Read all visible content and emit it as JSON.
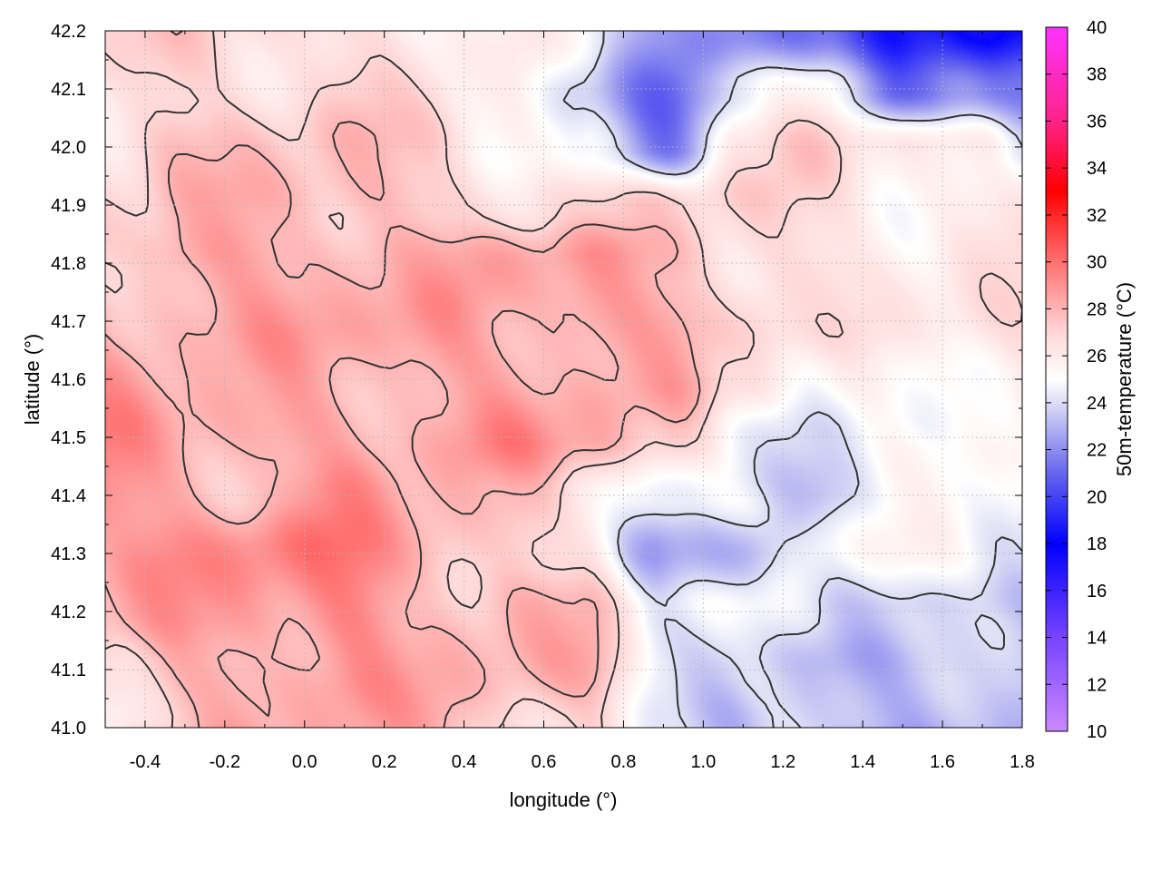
{
  "chart_data": {
    "type": "heatmap",
    "title": "",
    "xlabel": "longitude (°)",
    "ylabel": "latitude (°)",
    "colorbar_label": "50m-temperature (°C)",
    "xlim": [
      -0.5,
      1.8
    ],
    "ylim": [
      41.0,
      42.2
    ],
    "x_ticks": [
      "-0.4",
      "-0.2",
      "0.0",
      "0.2",
      "0.4",
      "0.6",
      "0.8",
      "1.0",
      "1.2",
      "1.4",
      "1.6",
      "1.8"
    ],
    "x_tick_values": [
      -0.4,
      -0.2,
      0.0,
      0.2,
      0.4,
      0.6,
      0.8,
      1.0,
      1.2,
      1.4,
      1.6,
      1.8
    ],
    "y_ticks": [
      "41.0",
      "41.1",
      "41.2",
      "41.3",
      "41.4",
      "41.5",
      "41.6",
      "41.7",
      "41.8",
      "41.9",
      "42.0",
      "42.1",
      "42.2"
    ],
    "y_tick_values": [
      41.0,
      41.1,
      41.2,
      41.3,
      41.4,
      41.5,
      41.6,
      41.7,
      41.8,
      41.9,
      42.0,
      42.1,
      42.2
    ],
    "colorbar_range": [
      10,
      40
    ],
    "colorbar_ticks": [
      "10",
      "12",
      "14",
      "16",
      "18",
      "20",
      "22",
      "24",
      "26",
      "28",
      "30",
      "32",
      "34",
      "36",
      "38",
      "40"
    ],
    "colorbar_tick_values": [
      10,
      12,
      14,
      16,
      18,
      20,
      22,
      24,
      26,
      28,
      30,
      32,
      34,
      36,
      38,
      40
    ],
    "colormap_stops": [
      {
        "value": 10,
        "color": "#cc88ff"
      },
      {
        "value": 14,
        "color": "#7744ff"
      },
      {
        "value": 18,
        "color": "#0000ff"
      },
      {
        "value": 21,
        "color": "#6666ee"
      },
      {
        "value": 24,
        "color": "#ddddf5"
      },
      {
        "value": 25,
        "color": "#ffffff"
      },
      {
        "value": 27,
        "color": "#ffd6d6"
      },
      {
        "value": 30,
        "color": "#ff7070"
      },
      {
        "value": 33,
        "color": "#ff0000"
      },
      {
        "value": 36,
        "color": "#ff2288"
      },
      {
        "value": 40,
        "color": "#ff33ff"
      }
    ],
    "grid": true,
    "contours": true,
    "temperature_field": {
      "lon": [
        -0.5,
        -0.3,
        -0.1,
        0.1,
        0.3,
        0.5,
        0.7,
        0.9,
        1.1,
        1.3,
        1.5,
        1.7,
        1.8
      ],
      "lat": [
        41.0,
        41.1,
        41.2,
        41.3,
        41.4,
        41.5,
        41.6,
        41.7,
        41.8,
        41.9,
        42.0,
        42.1,
        42.2
      ],
      "values": [
        [
          26.5,
          27.5,
          28.0,
          28.5,
          28.0,
          27.5,
          27.0,
          24.5,
          23.0,
          23.0,
          23.0,
          23.0,
          23.0
        ],
        [
          27.0,
          28.0,
          28.5,
          29.0,
          28.0,
          28.0,
          28.0,
          25.0,
          24.0,
          23.0,
          23.0,
          23.0,
          23.0
        ],
        [
          28.0,
          28.5,
          29.0,
          29.5,
          28.0,
          28.0,
          27.5,
          24.5,
          24.5,
          24.5,
          24.0,
          23.5,
          23.5
        ],
        [
          28.5,
          29.0,
          29.5,
          29.5,
          28.5,
          27.5,
          26.5,
          22.5,
          22.0,
          25.0,
          25.5,
          25.0,
          25.0
        ],
        [
          29.0,
          28.5,
          28.0,
          29.0,
          28.0,
          27.5,
          26.5,
          25.0,
          24.5,
          23.5,
          24.5,
          25.0,
          25.0
        ],
        [
          29.0,
          28.5,
          28.5,
          28.5,
          28.5,
          29.0,
          28.5,
          27.0,
          25.0,
          24.5,
          25.0,
          25.5,
          25.5
        ],
        [
          28.5,
          28.0,
          28.0,
          28.0,
          28.5,
          28.5,
          28.5,
          28.0,
          26.5,
          25.0,
          25.5,
          26.0,
          26.0
        ],
        [
          28.0,
          28.5,
          28.5,
          28.5,
          28.5,
          28.0,
          29.0,
          28.5,
          27.5,
          26.0,
          26.0,
          26.5,
          26.5
        ],
        [
          27.0,
          28.5,
          28.5,
          28.5,
          28.0,
          28.5,
          28.5,
          28.0,
          27.0,
          26.5,
          26.0,
          26.0,
          26.0
        ],
        [
          27.0,
          27.5,
          28.0,
          28.0,
          27.5,
          27.0,
          26.5,
          27.0,
          27.0,
          26.5,
          26.0,
          26.0,
          26.0
        ],
        [
          27.0,
          27.5,
          27.5,
          27.5,
          27.0,
          26.0,
          25.0,
          22.0,
          26.0,
          27.0,
          26.0,
          25.5,
          24.5
        ],
        [
          26.5,
          27.0,
          27.0,
          27.0,
          26.5,
          25.5,
          23.0,
          21.5,
          24.5,
          26.0,
          20.5,
          21.0,
          21.5
        ],
        [
          26.5,
          27.0,
          27.0,
          26.5,
          26.5,
          26.0,
          24.5,
          22.0,
          21.0,
          22.0,
          18.5,
          18.0,
          18.5
        ]
      ]
    }
  }
}
